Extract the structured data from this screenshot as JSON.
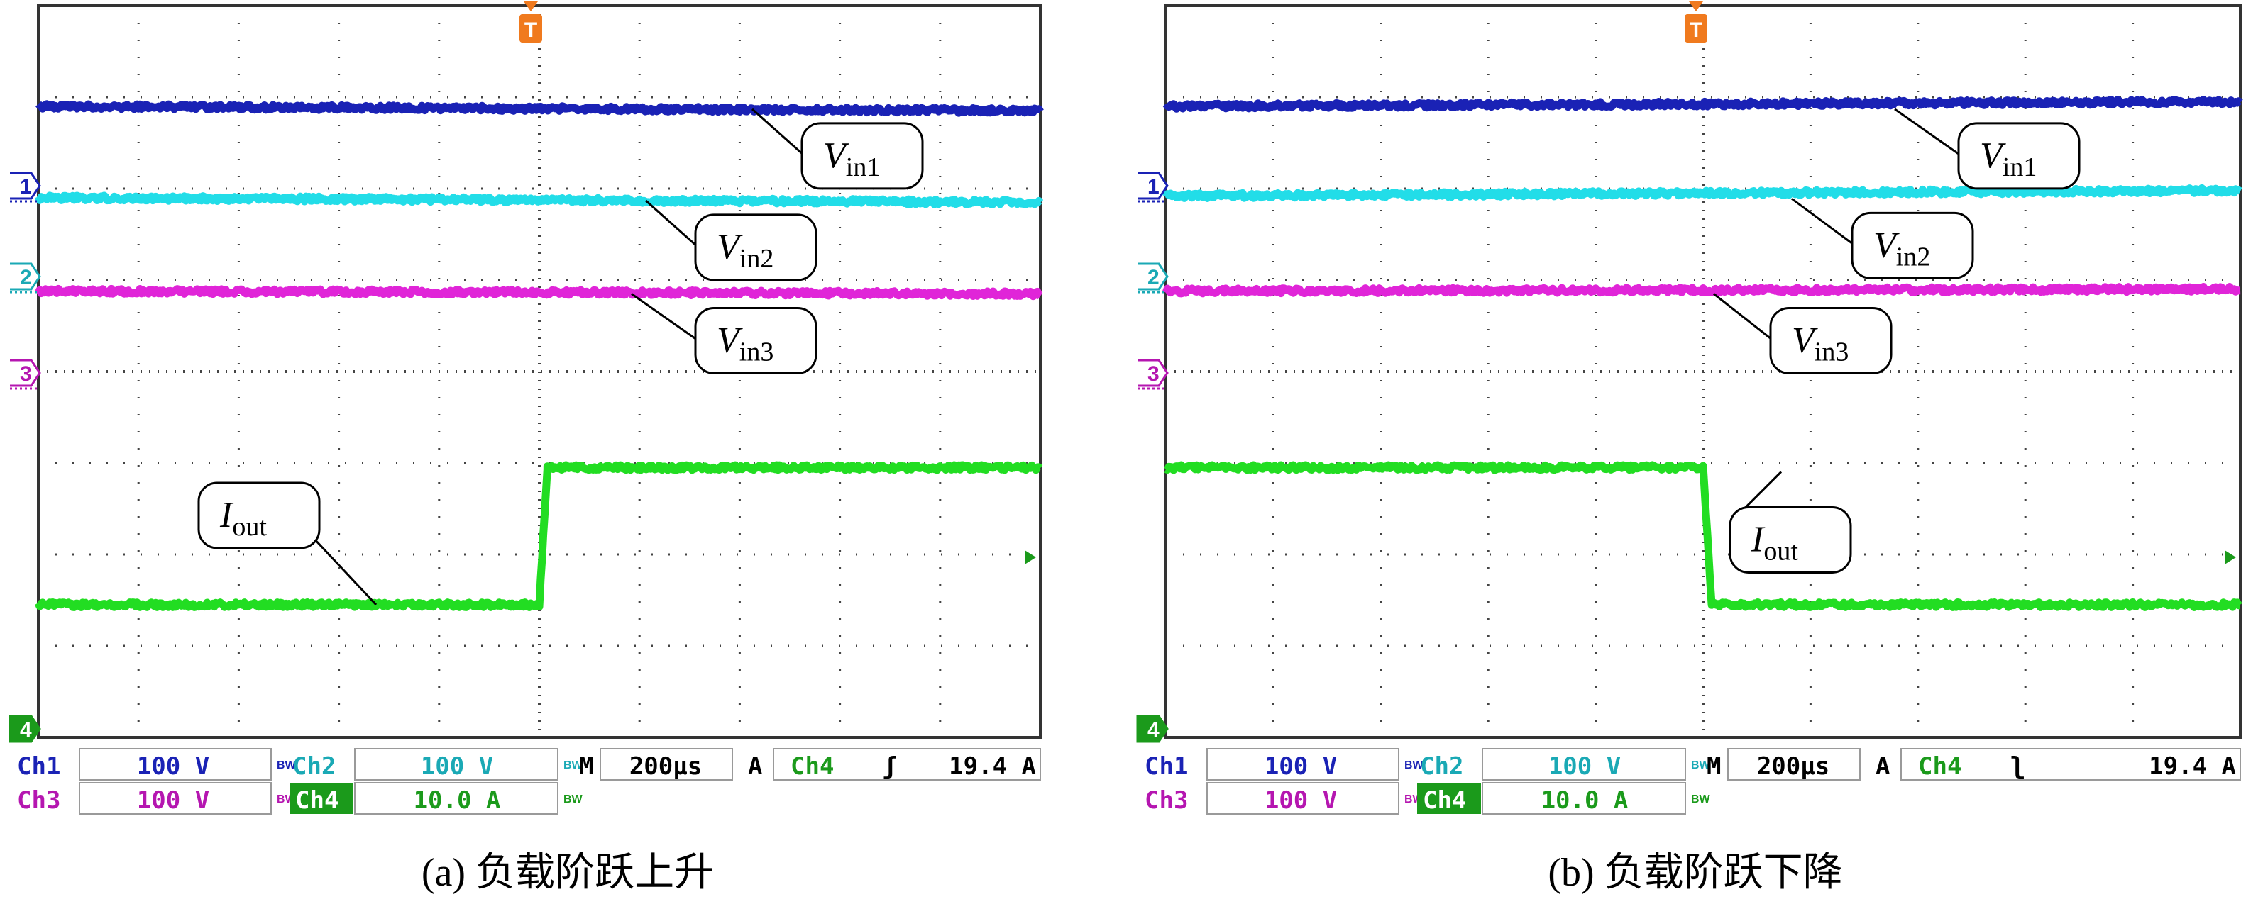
{
  "chart_data": [
    {
      "type": "line",
      "caption": "(a) 负载阶跃上升",
      "x_divisions": 10,
      "y_divisions": 8,
      "trigger_marker": "T",
      "trigger_level_channel": "Ch4",
      "channel_markers": [
        "1",
        "2",
        "3",
        "4"
      ],
      "trigger_edge": "rising",
      "series": [
        {
          "name": "V_in1",
          "label_main": "V",
          "label_sub": "in1",
          "color": "#1a22b5",
          "x": [
            0,
            10
          ],
          "y": [
            6.9,
            6.85
          ]
        },
        {
          "name": "V_in2",
          "label_main": "V",
          "label_sub": "in2",
          "color": "#22dde8",
          "x": [
            0,
            10
          ],
          "y": [
            5.9,
            5.85
          ]
        },
        {
          "name": "V_in3",
          "label_main": "V",
          "label_sub": "in3",
          "color": "#e025d8",
          "x": [
            0,
            10
          ],
          "y": [
            4.88,
            4.85
          ]
        },
        {
          "name": "I_out",
          "label_main": "I",
          "label_sub": "out",
          "color": "#22dd22",
          "x": [
            0,
            5.0,
            5.08,
            10
          ],
          "y": [
            1.45,
            1.45,
            2.95,
            2.95
          ]
        }
      ],
      "readout": {
        "ch1": {
          "name": "Ch1",
          "value": "100 V"
        },
        "ch2": {
          "name": "Ch2",
          "value": "100 V"
        },
        "ch3": {
          "name": "Ch3",
          "value": "100 V"
        },
        "ch4": {
          "name": "Ch4",
          "value": "10.0 A"
        },
        "bw": "BW",
        "timebase": {
          "prefix": "M",
          "value": "200μs"
        },
        "trigger": {
          "mode": "A",
          "channel": "Ch4",
          "slope": "ʃ",
          "level": "19.4 A"
        }
      }
    },
    {
      "type": "line",
      "caption": "(b) 负载阶跃下降",
      "x_divisions": 10,
      "y_divisions": 8,
      "trigger_marker": "T",
      "trigger_level_channel": "Ch4",
      "channel_markers": [
        "1",
        "2",
        "3",
        "4"
      ],
      "trigger_edge": "falling",
      "series": [
        {
          "name": "V_in1",
          "label_main": "V",
          "label_sub": "in1",
          "color": "#1a22b5",
          "x": [
            0,
            10
          ],
          "y": [
            6.9,
            6.95
          ]
        },
        {
          "name": "V_in2",
          "label_main": "V",
          "label_sub": "in2",
          "color": "#22dde8",
          "x": [
            0,
            10
          ],
          "y": [
            5.92,
            5.98
          ]
        },
        {
          "name": "V_in3",
          "label_main": "V",
          "label_sub": "in3",
          "color": "#e025d8",
          "x": [
            0,
            10
          ],
          "y": [
            4.88,
            4.9
          ]
        },
        {
          "name": "I_out",
          "label_main": "I",
          "label_sub": "out",
          "color": "#22dd22",
          "x": [
            0,
            5.0,
            5.08,
            10
          ],
          "y": [
            2.95,
            2.95,
            1.45,
            1.45
          ]
        }
      ],
      "readout": {
        "ch1": {
          "name": "Ch1",
          "value": "100 V"
        },
        "ch2": {
          "name": "Ch2",
          "value": "100 V"
        },
        "ch3": {
          "name": "Ch3",
          "value": "100 V"
        },
        "ch4": {
          "name": "Ch4",
          "value": "10.0 A"
        },
        "bw": "BW",
        "timebase": {
          "prefix": "M",
          "value": "200μs"
        },
        "trigger": {
          "mode": "A",
          "channel": "Ch4",
          "slope": "ʅ",
          "level": "19.4 A"
        }
      }
    }
  ]
}
